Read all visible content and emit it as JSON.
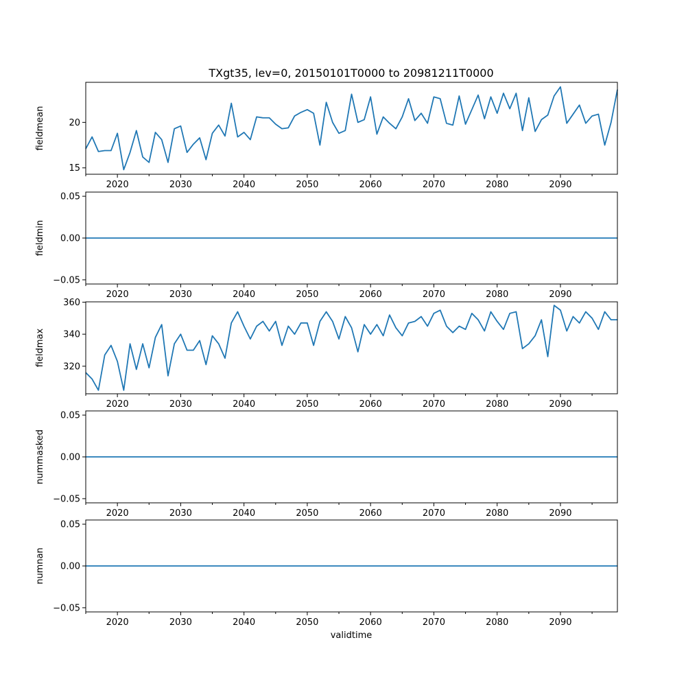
{
  "figure": {
    "title": "TXgt35, lev=0, 20150101T0000 to 20981211T0000",
    "xlabel": "validtime",
    "line_color": "#1f77b4"
  },
  "chart_data": [
    {
      "type": "line",
      "name": "fieldmean",
      "ylabel": "fieldmean",
      "xlim": [
        2015,
        2099
      ],
      "ylim": [
        14.3,
        24.4
      ],
      "yticks": [
        15,
        20
      ],
      "ytick_labels": [
        "15",
        "20"
      ],
      "xticks": [
        2020,
        2030,
        2040,
        2050,
        2060,
        2070,
        2080,
        2090
      ],
      "xtick_labels": [
        "2020",
        "2030",
        "2040",
        "2050",
        "2060",
        "2070",
        "2080",
        "2090"
      ],
      "x": [
        2015,
        2016,
        2017,
        2018,
        2019,
        2020,
        2021,
        2022,
        2023,
        2024,
        2025,
        2026,
        2027,
        2028,
        2029,
        2030,
        2031,
        2032,
        2033,
        2034,
        2035,
        2036,
        2037,
        2038,
        2039,
        2040,
        2041,
        2042,
        2043,
        2044,
        2045,
        2046,
        2047,
        2048,
        2049,
        2050,
        2051,
        2052,
        2053,
        2054,
        2055,
        2056,
        2057,
        2058,
        2059,
        2060,
        2061,
        2062,
        2063,
        2064,
        2065,
        2066,
        2067,
        2068,
        2069,
        2070,
        2071,
        2072,
        2073,
        2074,
        2075,
        2076,
        2077,
        2078,
        2079,
        2080,
        2081,
        2082,
        2083,
        2084,
        2085,
        2086,
        2087,
        2088,
        2089,
        2090,
        2091,
        2092,
        2093,
        2094,
        2095,
        2096,
        2097,
        2098,
        2099
      ],
      "values": [
        17.1,
        18.4,
        16.8,
        16.9,
        16.9,
        18.8,
        14.8,
        16.7,
        19.1,
        16.2,
        15.6,
        18.9,
        18.1,
        15.6,
        19.3,
        19.6,
        16.7,
        17.6,
        18.3,
        15.9,
        18.8,
        19.7,
        18.5,
        22.1,
        18.4,
        18.9,
        18.1,
        20.6,
        20.5,
        20.5,
        19.8,
        19.3,
        19.4,
        20.7,
        21.1,
        21.4,
        21.0,
        17.5,
        22.2,
        20.0,
        18.8,
        19.1,
        23.1,
        20.0,
        20.3,
        22.8,
        18.7,
        20.6,
        19.9,
        19.3,
        20.6,
        22.6,
        20.2,
        21.0,
        19.9,
        22.8,
        22.6,
        19.9,
        19.7,
        22.9,
        19.8,
        21.4,
        23.0,
        20.4,
        22.8,
        21.0,
        23.2,
        21.5,
        23.2,
        19.1,
        22.7,
        19.0,
        20.3,
        20.8,
        22.9,
        23.9,
        19.9,
        20.9,
        21.9,
        19.9,
        20.7,
        20.9,
        17.5,
        20.0,
        23.6
      ]
    },
    {
      "type": "line",
      "name": "fieldmin",
      "ylabel": "fieldmin",
      "xlim": [
        2015,
        2099
      ],
      "ylim": [
        -0.055,
        0.055
      ],
      "yticks": [
        -0.05,
        0,
        0.05
      ],
      "ytick_labels": [
        "−0.05",
        "0.00",
        "0.05"
      ],
      "xticks": [
        2020,
        2030,
        2040,
        2050,
        2060,
        2070,
        2080,
        2090
      ],
      "xtick_labels": [
        "2020",
        "2030",
        "2040",
        "2050",
        "2060",
        "2070",
        "2080",
        "2090"
      ],
      "x": [
        2015,
        2099
      ],
      "values": [
        0,
        0
      ]
    },
    {
      "type": "line",
      "name": "fieldmax",
      "ylabel": "fieldmax",
      "xlim": [
        2015,
        2099
      ],
      "ylim": [
        302.8,
        360.2
      ],
      "yticks": [
        320,
        340,
        360
      ],
      "ytick_labels": [
        "320",
        "340",
        "360"
      ],
      "xticks": [
        2020,
        2030,
        2040,
        2050,
        2060,
        2070,
        2080,
        2090
      ],
      "xtick_labels": [
        "2020",
        "2030",
        "2040",
        "2050",
        "2060",
        "2070",
        "2080",
        "2090"
      ],
      "x": [
        2015,
        2016,
        2017,
        2018,
        2019,
        2020,
        2021,
        2022,
        2023,
        2024,
        2025,
        2026,
        2027,
        2028,
        2029,
        2030,
        2031,
        2032,
        2033,
        2034,
        2035,
        2036,
        2037,
        2038,
        2039,
        2040,
        2041,
        2042,
        2043,
        2044,
        2045,
        2046,
        2047,
        2048,
        2049,
        2050,
        2051,
        2052,
        2053,
        2054,
        2055,
        2056,
        2057,
        2058,
        2059,
        2060,
        2061,
        2062,
        2063,
        2064,
        2065,
        2066,
        2067,
        2068,
        2069,
        2070,
        2071,
        2072,
        2073,
        2074,
        2075,
        2076,
        2077,
        2078,
        2079,
        2080,
        2081,
        2082,
        2083,
        2084,
        2085,
        2086,
        2087,
        2088,
        2089,
        2090,
        2091,
        2092,
        2093,
        2094,
        2095,
        2096,
        2097,
        2098,
        2099
      ],
      "values": [
        316,
        312,
        305,
        327,
        333,
        323,
        305,
        334,
        318,
        334,
        319,
        338,
        346,
        314,
        334,
        340,
        330,
        330,
        336,
        321,
        339,
        334,
        325,
        347,
        354,
        345,
        337,
        345,
        348,
        342,
        348,
        333,
        345,
        340,
        347,
        347,
        333,
        348,
        354,
        348,
        337,
        351,
        344,
        329,
        346,
        340,
        346,
        339,
        352,
        344,
        339,
        347,
        348,
        351,
        345,
        353,
        355,
        345,
        341,
        345,
        343,
        353,
        349,
        342,
        354,
        348,
        343,
        353,
        354,
        331,
        334,
        339,
        349,
        326,
        358,
        355,
        342,
        351,
        347,
        354,
        350,
        343,
        354,
        349,
        349
      ]
    },
    {
      "type": "line",
      "name": "nummasked",
      "ylabel": "nummasked",
      "xlim": [
        2015,
        2099
      ],
      "ylim": [
        -0.055,
        0.055
      ],
      "yticks": [
        -0.05,
        0,
        0.05
      ],
      "ytick_labels": [
        "−0.05",
        "0.00",
        "0.05"
      ],
      "xticks": [
        2020,
        2030,
        2040,
        2050,
        2060,
        2070,
        2080,
        2090
      ],
      "xtick_labels": [
        "2020",
        "2030",
        "2040",
        "2050",
        "2060",
        "2070",
        "2080",
        "2090"
      ],
      "x": [
        2015,
        2099
      ],
      "values": [
        0,
        0
      ]
    },
    {
      "type": "line",
      "name": "numnan",
      "ylabel": "numnan",
      "xlim": [
        2015,
        2099
      ],
      "ylim": [
        -0.055,
        0.055
      ],
      "yticks": [
        -0.05,
        0,
        0.05
      ],
      "ytick_labels": [
        "−0.05",
        "0.00",
        "0.05"
      ],
      "xticks": [
        2020,
        2030,
        2040,
        2050,
        2060,
        2070,
        2080,
        2090
      ],
      "xtick_labels": [
        "2020",
        "2030",
        "2040",
        "2050",
        "2060",
        "2070",
        "2080",
        "2090"
      ],
      "x": [
        2015,
        2099
      ],
      "values": [
        0,
        0
      ]
    }
  ]
}
